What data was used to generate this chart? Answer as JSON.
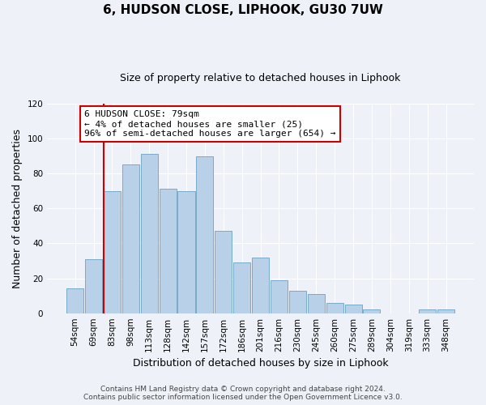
{
  "title": "6, HUDSON CLOSE, LIPHOOK, GU30 7UW",
  "subtitle": "Size of property relative to detached houses in Liphook",
  "xlabel": "Distribution of detached houses by size in Liphook",
  "ylabel": "Number of detached properties",
  "bar_labels": [
    "54sqm",
    "69sqm",
    "83sqm",
    "98sqm",
    "113sqm",
    "128sqm",
    "142sqm",
    "157sqm",
    "172sqm",
    "186sqm",
    "201sqm",
    "216sqm",
    "230sqm",
    "245sqm",
    "260sqm",
    "275sqm",
    "289sqm",
    "304sqm",
    "319sqm",
    "333sqm",
    "348sqm"
  ],
  "bar_values": [
    14,
    31,
    70,
    85,
    91,
    71,
    70,
    90,
    47,
    29,
    32,
    19,
    13,
    11,
    6,
    5,
    2,
    0,
    0,
    2,
    2
  ],
  "bar_color": "#b8d0e8",
  "bar_edge_color": "#7aaac8",
  "vline_x_index": 2,
  "vline_color": "#cc0000",
  "ylim": [
    0,
    120
  ],
  "yticks": [
    0,
    20,
    40,
    60,
    80,
    100,
    120
  ],
  "annotation_lines": [
    "6 HUDSON CLOSE: 79sqm",
    "← 4% of detached houses are smaller (25)",
    "96% of semi-detached houses are larger (654) →"
  ],
  "footer_line1": "Contains HM Land Registry data © Crown copyright and database right 2024.",
  "footer_line2": "Contains public sector information licensed under the Open Government Licence v3.0.",
  "background_color": "#eef2f8",
  "grid_color": "#ffffff",
  "title_fontsize": 11,
  "subtitle_fontsize": 9,
  "axis_label_fontsize": 9,
  "tick_fontsize": 7.5,
  "footer_fontsize": 6.5,
  "annotation_fontsize": 8
}
